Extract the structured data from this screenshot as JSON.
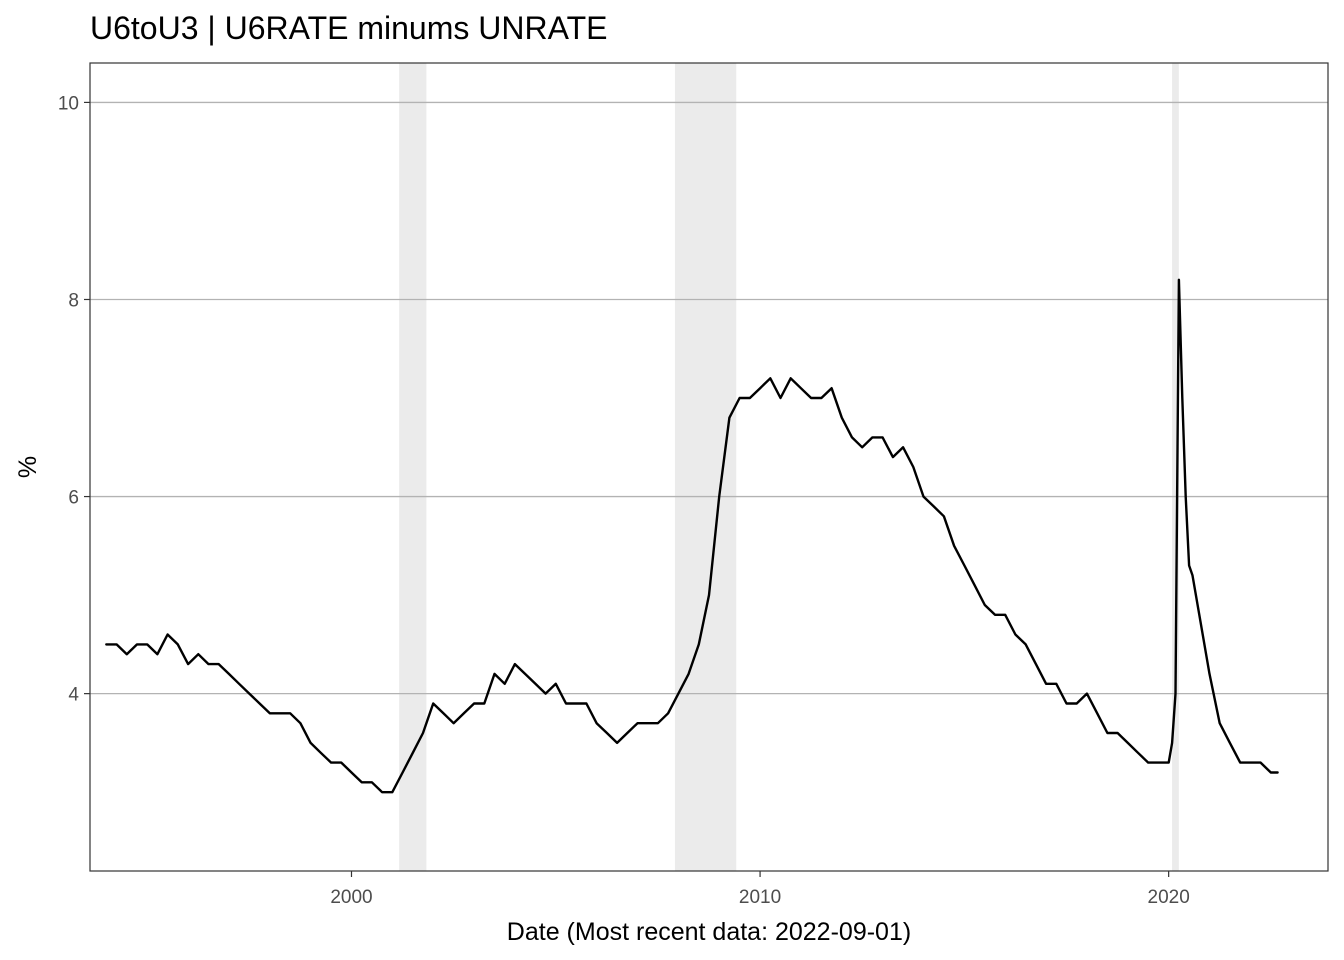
{
  "chart_data": {
    "type": "line",
    "title": "U6toU3 | U6RATE minums UNRATE",
    "xlabel": "Date (Most recent data: 2022-09-01)",
    "ylabel": "%",
    "xlim": [
      1993.6,
      2023.9
    ],
    "ylim": [
      2.2,
      10.4
    ],
    "x_ticks": [
      {
        "value": 2000,
        "label": "2000"
      },
      {
        "value": 2010,
        "label": "2010"
      },
      {
        "value": 2020,
        "label": "2020"
      }
    ],
    "y_ticks": [
      {
        "value": 4,
        "label": "4"
      },
      {
        "value": 6,
        "label": "6"
      },
      {
        "value": 8,
        "label": "8"
      },
      {
        "value": 10,
        "label": "10"
      }
    ],
    "grid": true,
    "legend": "none",
    "recessions": [
      {
        "start": "2001-03",
        "end": "2001-11"
      },
      {
        "start": "2007-12",
        "end": "2009-06"
      },
      {
        "start": "2020-02",
        "end": "2020-04"
      }
    ],
    "colors": {
      "line": "#000000",
      "recession": "#ebebeb",
      "grid": "#b3b3b3",
      "border": "#333333",
      "tick_text": "#4d4d4d"
    },
    "series": [
      {
        "x": [
          "1994-01",
          "1994-04",
          "1994-07",
          "1994-10",
          "1995-01",
          "1995-04",
          "1995-07",
          "1995-10",
          "1996-01",
          "1996-04",
          "1996-07",
          "1996-10",
          "1997-01",
          "1997-04",
          "1997-07",
          "1997-10",
          "1998-01",
          "1998-04",
          "1998-07",
          "1998-10",
          "1999-01",
          "1999-04",
          "1999-07",
          "1999-10",
          "2000-01",
          "2000-04",
          "2000-07",
          "2000-10",
          "2001-01",
          "2001-04",
          "2001-07",
          "2001-10",
          "2002-01",
          "2002-04",
          "2002-07",
          "2002-10",
          "2003-01",
          "2003-04",
          "2003-07",
          "2003-10",
          "2004-01",
          "2004-04",
          "2004-07",
          "2004-10",
          "2005-01",
          "2005-04",
          "2005-07",
          "2005-10",
          "2006-01",
          "2006-04",
          "2006-07",
          "2006-10",
          "2007-01",
          "2007-04",
          "2007-07",
          "2007-10",
          "2008-01",
          "2008-04",
          "2008-07",
          "2008-10",
          "2009-01",
          "2009-04",
          "2009-07",
          "2009-10",
          "2010-01",
          "2010-04",
          "2010-07",
          "2010-10",
          "2011-01",
          "2011-04",
          "2011-07",
          "2011-10",
          "2012-01",
          "2012-04",
          "2012-07",
          "2012-10",
          "2013-01",
          "2013-04",
          "2013-07",
          "2013-10",
          "2014-01",
          "2014-04",
          "2014-07",
          "2014-10",
          "2015-01",
          "2015-04",
          "2015-07",
          "2015-10",
          "2016-01",
          "2016-04",
          "2016-07",
          "2016-10",
          "2017-01",
          "2017-04",
          "2017-07",
          "2017-10",
          "2018-01",
          "2018-04",
          "2018-07",
          "2018-10",
          "2019-01",
          "2019-04",
          "2019-07",
          "2019-10",
          "2020-01",
          "2020-02",
          "2020-03",
          "2020-04",
          "2020-05",
          "2020-06",
          "2020-07",
          "2020-08",
          "2020-10",
          "2021-01",
          "2021-04",
          "2021-07",
          "2021-10",
          "2022-01",
          "2022-04",
          "2022-07",
          "2022-09"
        ],
        "values": [
          4.5,
          4.5,
          4.4,
          4.5,
          4.5,
          4.4,
          4.6,
          4.5,
          4.3,
          4.4,
          4.3,
          4.3,
          4.2,
          4.1,
          4.0,
          3.9,
          3.8,
          3.8,
          3.8,
          3.7,
          3.5,
          3.4,
          3.3,
          3.3,
          3.2,
          3.1,
          3.1,
          3.0,
          3.0,
          3.2,
          3.4,
          3.6,
          3.9,
          3.8,
          3.7,
          3.8,
          3.9,
          3.9,
          4.2,
          4.1,
          4.3,
          4.2,
          4.1,
          4.0,
          4.1,
          3.9,
          3.9,
          3.9,
          3.7,
          3.6,
          3.5,
          3.6,
          3.7,
          3.7,
          3.7,
          3.8,
          4.0,
          4.2,
          4.5,
          5.0,
          6.0,
          6.8,
          7.0,
          7.0,
          7.1,
          7.2,
          7.0,
          7.2,
          7.1,
          7.0,
          7.0,
          7.1,
          6.8,
          6.6,
          6.5,
          6.6,
          6.6,
          6.4,
          6.5,
          6.3,
          6.0,
          5.9,
          5.8,
          5.5,
          5.3,
          5.1,
          4.9,
          4.8,
          4.8,
          4.6,
          4.5,
          4.3,
          4.1,
          4.1,
          3.9,
          3.9,
          4.0,
          3.8,
          3.6,
          3.6,
          3.5,
          3.4,
          3.3,
          3.3,
          3.3,
          3.5,
          4.0,
          8.2,
          7.0,
          6.0,
          5.3,
          5.2,
          4.8,
          4.2,
          3.7,
          3.5,
          3.3,
          3.3,
          3.3,
          3.2,
          3.2
        ]
      }
    ]
  }
}
